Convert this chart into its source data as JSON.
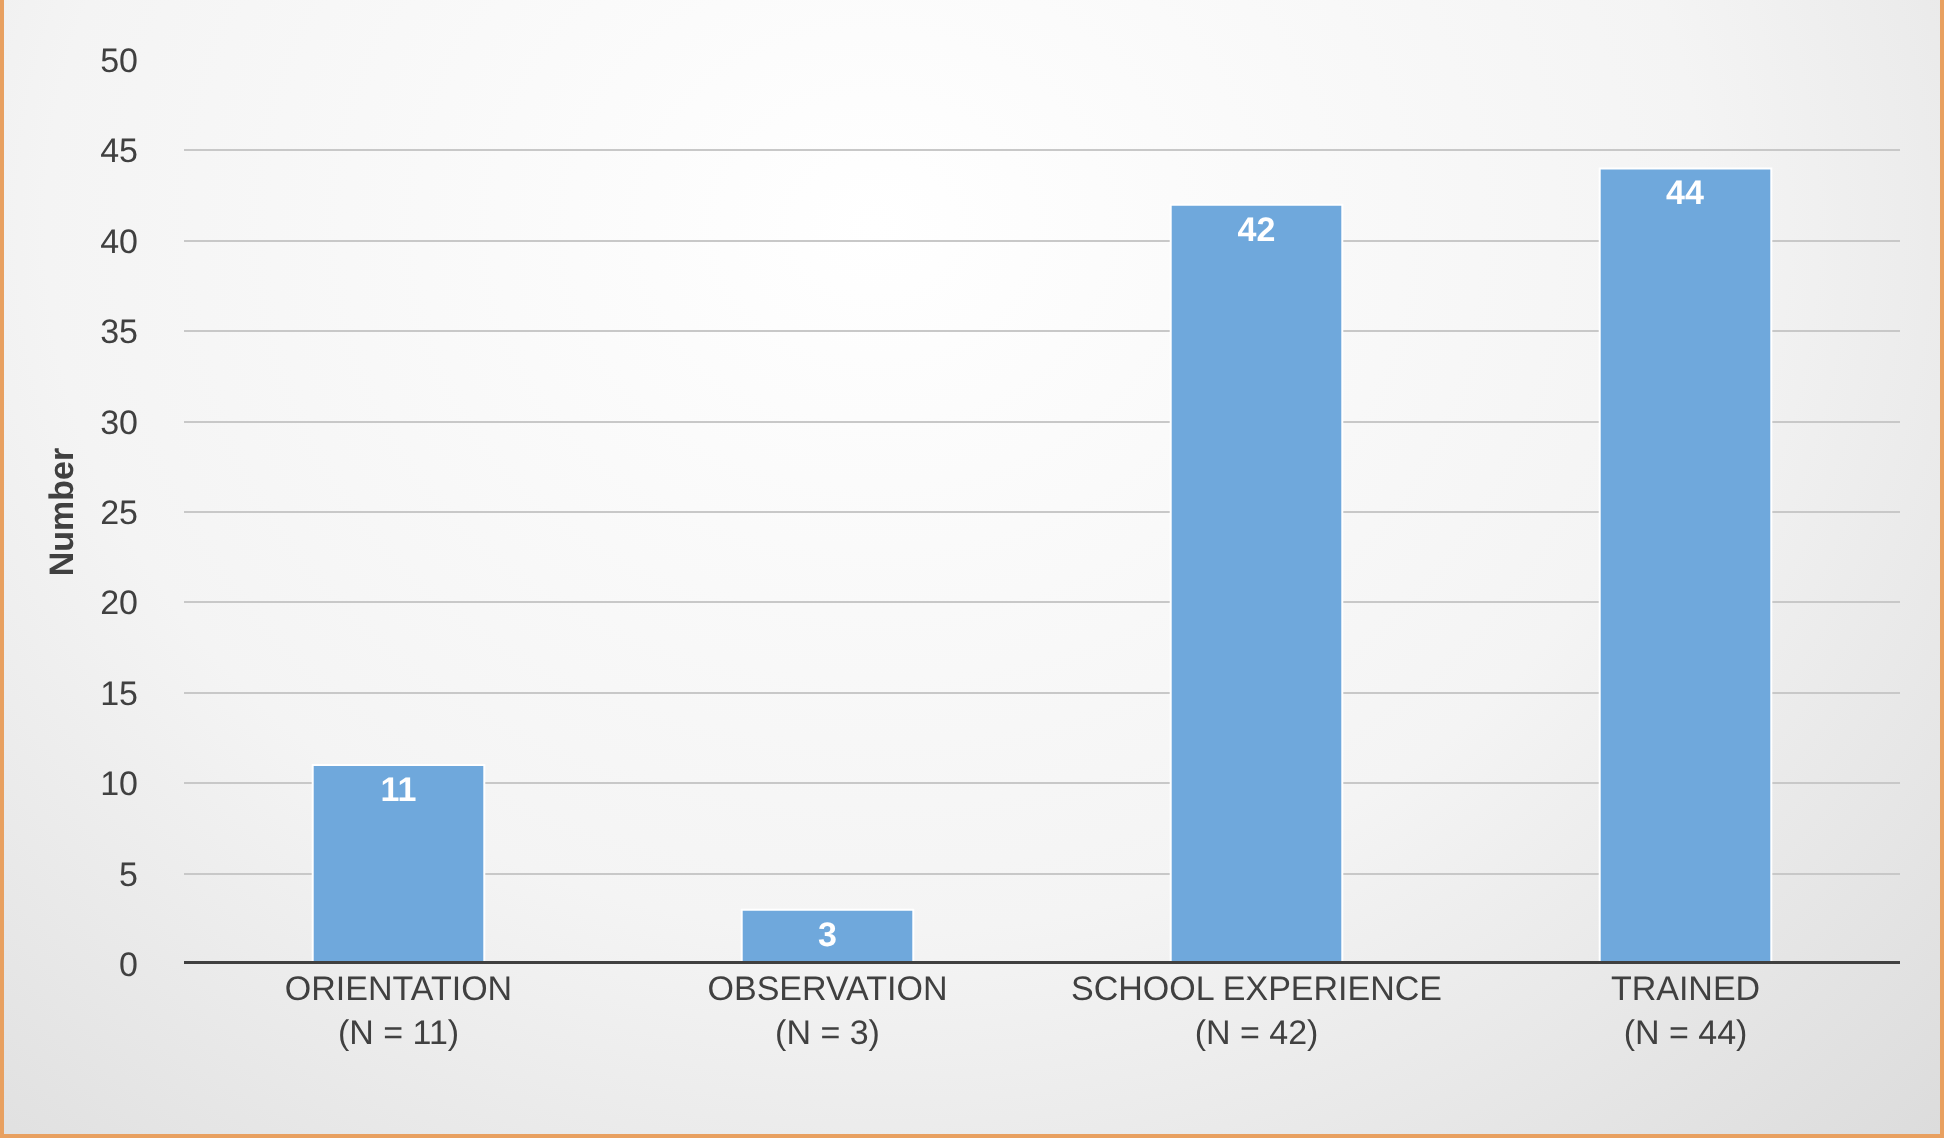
{
  "chart_data": {
    "type": "bar",
    "ylabel": "Number",
    "categories": [
      "ORIENTATION\n(N = 11)",
      "OBSERVATION\n(N = 3)",
      "SCHOOL EXPERIENCE\n(N = 42)",
      "TRAINED\n(N = 44)"
    ],
    "values": [
      11,
      3,
      42,
      44
    ],
    "color": "#6fa8dc",
    "ylim": [
      0,
      50
    ],
    "yticks": [
      0,
      5,
      10,
      15,
      20,
      25,
      30,
      35,
      40,
      45,
      50
    ],
    "grid": "y",
    "data_labels": true
  }
}
